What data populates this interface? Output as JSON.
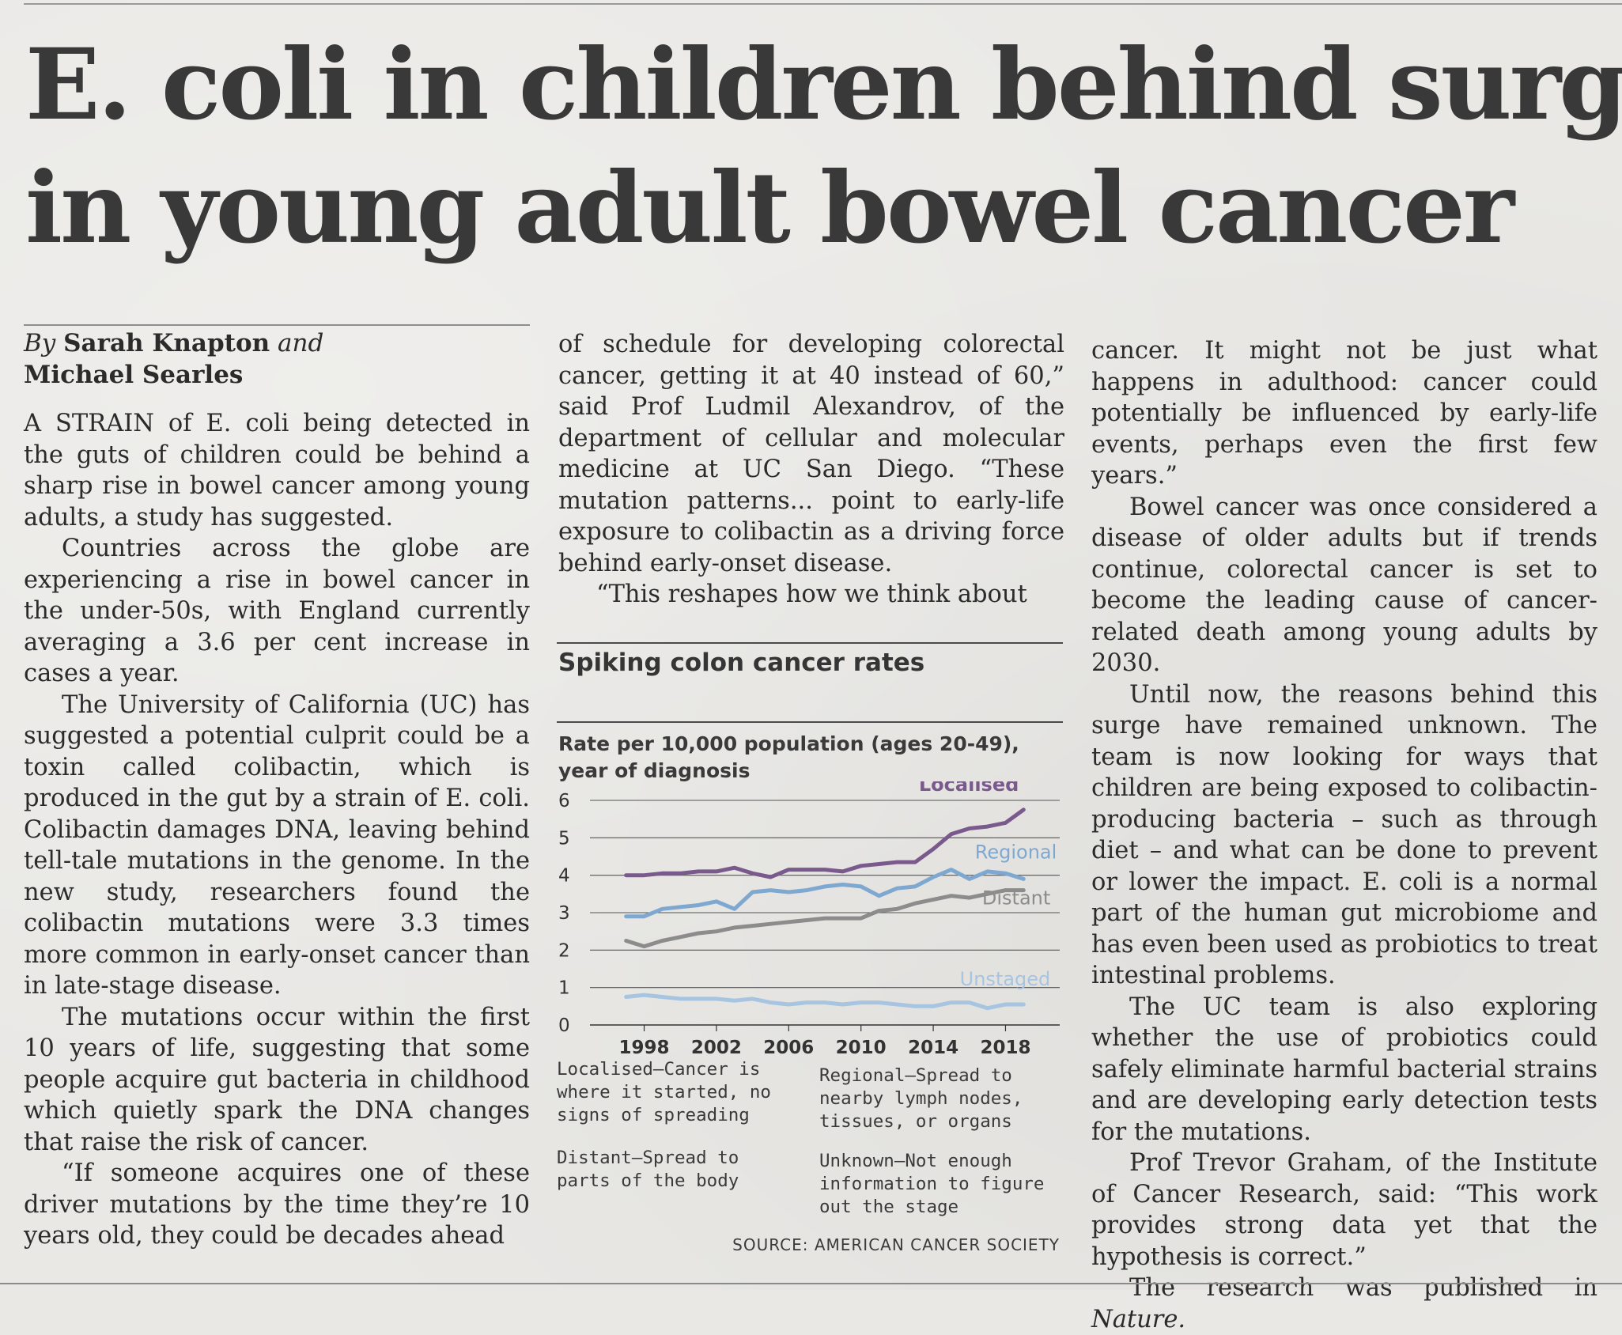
{
  "headline": {
    "line1": "E. coli in children behind surge",
    "line2": "in young adult bowel cancer"
  },
  "byline": {
    "by": "By",
    "author1": "Sarah Knapton",
    "and": "and",
    "author2": "Michael Searles"
  },
  "columns": {
    "col1": [
      "A STRAIN of E. coli being detected in the guts of children could be behind a sharp rise in bowel cancer among young adults, a study has suggested.",
      "Countries across the globe are experiencing a rise in bowel cancer in the under-50s, with England currently averaging a 3.6 per cent increase in cases a year.",
      "The University of California (UC) has suggested a potential culprit could be a toxin called colibactin, which is produced in the gut by a strain of E. coli. Colibactin damages DNA, leaving behind tell-tale mutations in the genome. In the new study, researchers found the colibactin mutations were 3.3 times more common in early-onset cancer than in late-stage disease.",
      "The mutations occur within the first 10 years of life, suggesting that some people acquire gut bacteria in childhood which quietly spark the DNA changes that raise the risk of cancer.",
      "“If someone acquires one of these driver mutations by the time they’re 10 years old, they could be decades ahead"
    ],
    "col2": [
      "of schedule for developing colorectal cancer, getting it at 40 instead of 60,” said Prof Ludmil Alexandrov, of the department of cellular and molecular medicine at UC San Diego. “These mutation patterns... point to early-life exposure to colibactin as a driving force behind early-onset disease.",
      "“This reshapes how we think about"
    ],
    "col3": [
      "cancer. It might not be just what happens in adulthood: cancer could potentially be influenced by early-life events, perhaps even the first few years.”",
      "Bowel cancer was once considered a disease of older adults but if trends continue, colorectal cancer is set to become the leading cause of cancer-related death among young adults by 2030.",
      "Until now, the reasons behind this surge have remained unknown. The team is now looking for ways that children are being exposed to colibactin-producing bacteria – such as through diet – and what can be done to prevent or lower the impact. E. coli is a normal part of the human gut microbiome and has even been used as probiotics to treat intestinal problems.",
      "The UC team is also exploring whether the use of probiotics could safely eliminate harmful bacterial strains and are developing early detection tests for the mutations.",
      "Prof Trevor Graham, of the Institute of Cancer Research, said: “This work provides strong data yet that the hypothesis is correct.”",
      "The research was published in"
    ],
    "col3_italic_end": "Nature."
  },
  "chart_data": {
    "type": "line",
    "title": "Spiking colon cancer rates",
    "ylabel": "Rate per 10,000 population (ages 20-49), year of diagnosis",
    "xlabel": "",
    "ylim": [
      0,
      6
    ],
    "xlim": [
      1995,
      2021
    ],
    "yticks": [
      0,
      1,
      2,
      3,
      4,
      5,
      6
    ],
    "xticks": [
      1998,
      2002,
      2006,
      2010,
      2014,
      2018
    ],
    "grid": true,
    "series": [
      {
        "name": "Localised",
        "color": "#7a5a8c",
        "points": [
          [
            1997,
            4.0
          ],
          [
            1998,
            4.0
          ],
          [
            1999,
            4.05
          ],
          [
            2000,
            4.05
          ],
          [
            2001,
            4.1
          ],
          [
            2002,
            4.1
          ],
          [
            2003,
            4.2
          ],
          [
            2004,
            4.05
          ],
          [
            2005,
            3.95
          ],
          [
            2006,
            4.15
          ],
          [
            2007,
            4.15
          ],
          [
            2008,
            4.15
          ],
          [
            2009,
            4.1
          ],
          [
            2010,
            4.25
          ],
          [
            2011,
            4.3
          ],
          [
            2012,
            4.35
          ],
          [
            2013,
            4.35
          ],
          [
            2014,
            4.7
          ],
          [
            2015,
            5.1
          ],
          [
            2016,
            5.25
          ],
          [
            2017,
            5.3
          ],
          [
            2018,
            5.4
          ],
          [
            2019,
            5.75
          ]
        ]
      },
      {
        "name": "Regional",
        "color": "#7fa8d0",
        "points": [
          [
            1997,
            2.9
          ],
          [
            1998,
            2.9
          ],
          [
            1999,
            3.1
          ],
          [
            2000,
            3.15
          ],
          [
            2001,
            3.2
          ],
          [
            2002,
            3.3
          ],
          [
            2003,
            3.1
          ],
          [
            2004,
            3.55
          ],
          [
            2005,
            3.6
          ],
          [
            2006,
            3.55
          ],
          [
            2007,
            3.6
          ],
          [
            2008,
            3.7
          ],
          [
            2009,
            3.75
          ],
          [
            2010,
            3.7
          ],
          [
            2011,
            3.45
          ],
          [
            2012,
            3.65
          ],
          [
            2013,
            3.7
          ],
          [
            2014,
            3.95
          ],
          [
            2015,
            4.15
          ],
          [
            2016,
            3.9
          ],
          [
            2017,
            4.1
          ],
          [
            2018,
            4.05
          ],
          [
            2019,
            3.9
          ]
        ]
      },
      {
        "name": "Distant",
        "color": "#8c8c8c",
        "points": [
          [
            1997,
            2.25
          ],
          [
            1998,
            2.1
          ],
          [
            1999,
            2.25
          ],
          [
            2000,
            2.35
          ],
          [
            2001,
            2.45
          ],
          [
            2002,
            2.5
          ],
          [
            2003,
            2.6
          ],
          [
            2004,
            2.65
          ],
          [
            2005,
            2.7
          ],
          [
            2006,
            2.75
          ],
          [
            2007,
            2.8
          ],
          [
            2008,
            2.85
          ],
          [
            2009,
            2.85
          ],
          [
            2010,
            2.85
          ],
          [
            2011,
            3.05
          ],
          [
            2012,
            3.1
          ],
          [
            2013,
            3.25
          ],
          [
            2014,
            3.35
          ],
          [
            2015,
            3.45
          ],
          [
            2016,
            3.4
          ],
          [
            2017,
            3.5
          ],
          [
            2018,
            3.6
          ],
          [
            2019,
            3.6
          ]
        ]
      },
      {
        "name": "Unstaged",
        "color": "#a7c4e0",
        "points": [
          [
            1997,
            0.75
          ],
          [
            1998,
            0.8
          ],
          [
            1999,
            0.75
          ],
          [
            2000,
            0.7
          ],
          [
            2001,
            0.7
          ],
          [
            2002,
            0.7
          ],
          [
            2003,
            0.65
          ],
          [
            2004,
            0.7
          ],
          [
            2005,
            0.6
          ],
          [
            2006,
            0.55
          ],
          [
            2007,
            0.6
          ],
          [
            2008,
            0.6
          ],
          [
            2009,
            0.55
          ],
          [
            2010,
            0.6
          ],
          [
            2011,
            0.6
          ],
          [
            2012,
            0.55
          ],
          [
            2013,
            0.5
          ],
          [
            2014,
            0.5
          ],
          [
            2015,
            0.6
          ],
          [
            2016,
            0.6
          ],
          [
            2017,
            0.45
          ],
          [
            2018,
            0.55
          ],
          [
            2019,
            0.55
          ]
        ]
      }
    ],
    "notes": [
      "Localised—Cancer is where it started, no signs of spreading",
      "Regional—Spread to nearby lymph nodes, tissues, or organs",
      "Distant—Spread to parts of the body",
      "Unknown—Not enough information to figure out the stage"
    ],
    "source": "SOURCE: AMERICAN CANCER SOCIETY"
  }
}
